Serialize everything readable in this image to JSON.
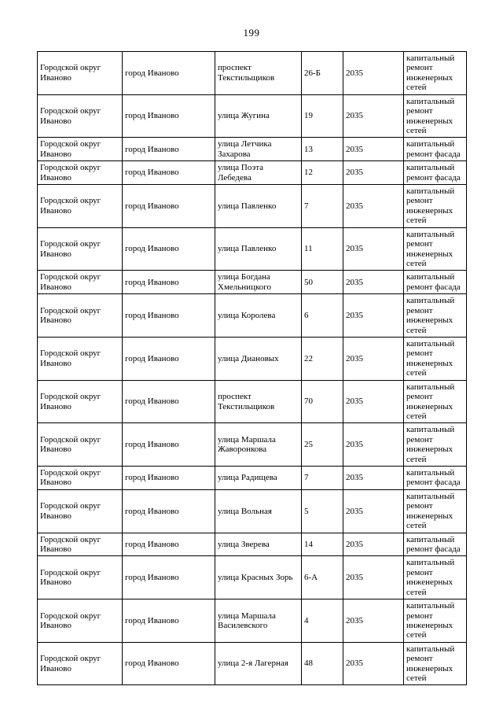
{
  "page_number": "199",
  "table": {
    "column_keys": [
      "district",
      "city",
      "street",
      "house",
      "year",
      "work"
    ],
    "rows": [
      {
        "district": "Городской округ Иваново",
        "city": "город Иваново",
        "street": "проспект Текстильщиков",
        "house": "26-Б",
        "year": "2035",
        "work": "капитальный ремонт инженерных сетей"
      },
      {
        "district": "Городской округ Иваново",
        "city": "город Иваново",
        "street": "улица Жугина",
        "house": "19",
        "year": "2035",
        "work": "капитальный ремонт инженерных сетей"
      },
      {
        "district": "Городской округ Иваново",
        "city": "город Иваново",
        "street": "улица Летчика Захарова",
        "house": "13",
        "year": "2035",
        "work": "капитальный ремонт фасада"
      },
      {
        "district": "Городской округ Иваново",
        "city": "город Иваново",
        "street": "улица Поэта Лебедева",
        "house": "12",
        "year": "2035",
        "work": "капитальный ремонт фасада"
      },
      {
        "district": "Городской округ Иваново",
        "city": "город Иваново",
        "street": "улица Павленко",
        "house": "7",
        "year": "2035",
        "work": "капитальный ремонт инженерных сетей"
      },
      {
        "district": "Городской округ Иваново",
        "city": "город Иваново",
        "street": "улица Павленко",
        "house": "11",
        "year": "2035",
        "work": "капитальный ремонт инженерных сетей"
      },
      {
        "district": "Городской округ Иваново",
        "city": "город Иваново",
        "street": "улица Богдана Хмельницкого",
        "house": "50",
        "year": "2035",
        "work": "капитальный ремонт фасада"
      },
      {
        "district": "Городской округ Иваново",
        "city": "город Иваново",
        "street": "улица Королева",
        "house": "6",
        "year": "2035",
        "work": "капитальный ремонт инженерных сетей"
      },
      {
        "district": "Городской округ Иваново",
        "city": "город Иваново",
        "street": "улица Диановых",
        "house": "22",
        "year": "2035",
        "work": "капитальный ремонт инженерных сетей"
      },
      {
        "district": "Городской округ Иваново",
        "city": "город Иваново",
        "street": "проспект Текстильщиков",
        "house": "70",
        "year": "2035",
        "work": "капитальный ремонт инженерных сетей"
      },
      {
        "district": "Городской округ Иваново",
        "city": "город Иваново",
        "street": "улица Маршала Жаворонкова",
        "house": "25",
        "year": "2035",
        "work": "капитальный ремонт инженерных сетей"
      },
      {
        "district": "Городской округ Иваново",
        "city": "город Иваново",
        "street": "улица Радищева",
        "house": "7",
        "year": "2035",
        "work": "капитальный ремонт фасада"
      },
      {
        "district": "Городской округ Иваново",
        "city": "город Иваново",
        "street": "улица Вольная",
        "house": "5",
        "year": "2035",
        "work": "капитальный ремонт инженерных сетей"
      },
      {
        "district": "Городской округ Иваново",
        "city": "город Иваново",
        "street": "улица Зверева",
        "house": "14",
        "year": "2035",
        "work": "капитальный ремонт фасада"
      },
      {
        "district": "Городской округ Иваново",
        "city": "город Иваново",
        "street": "улица Красных Зорь",
        "house": "6-А",
        "year": "2035",
        "work": "капитальный ремонт инженерных сетей"
      },
      {
        "district": "Городской округ Иваново",
        "city": "город Иваново",
        "street": "улица Маршала Василевского",
        "house": "4",
        "year": "2035",
        "work": "капитальный ремонт инженерных сетей"
      },
      {
        "district": "Городской округ Иваново",
        "city": "город Иваново",
        "street": "улица 2-я Лагерная",
        "house": "48",
        "year": "2035",
        "work": "капитальный ремонт инженерных сетей"
      }
    ]
  }
}
